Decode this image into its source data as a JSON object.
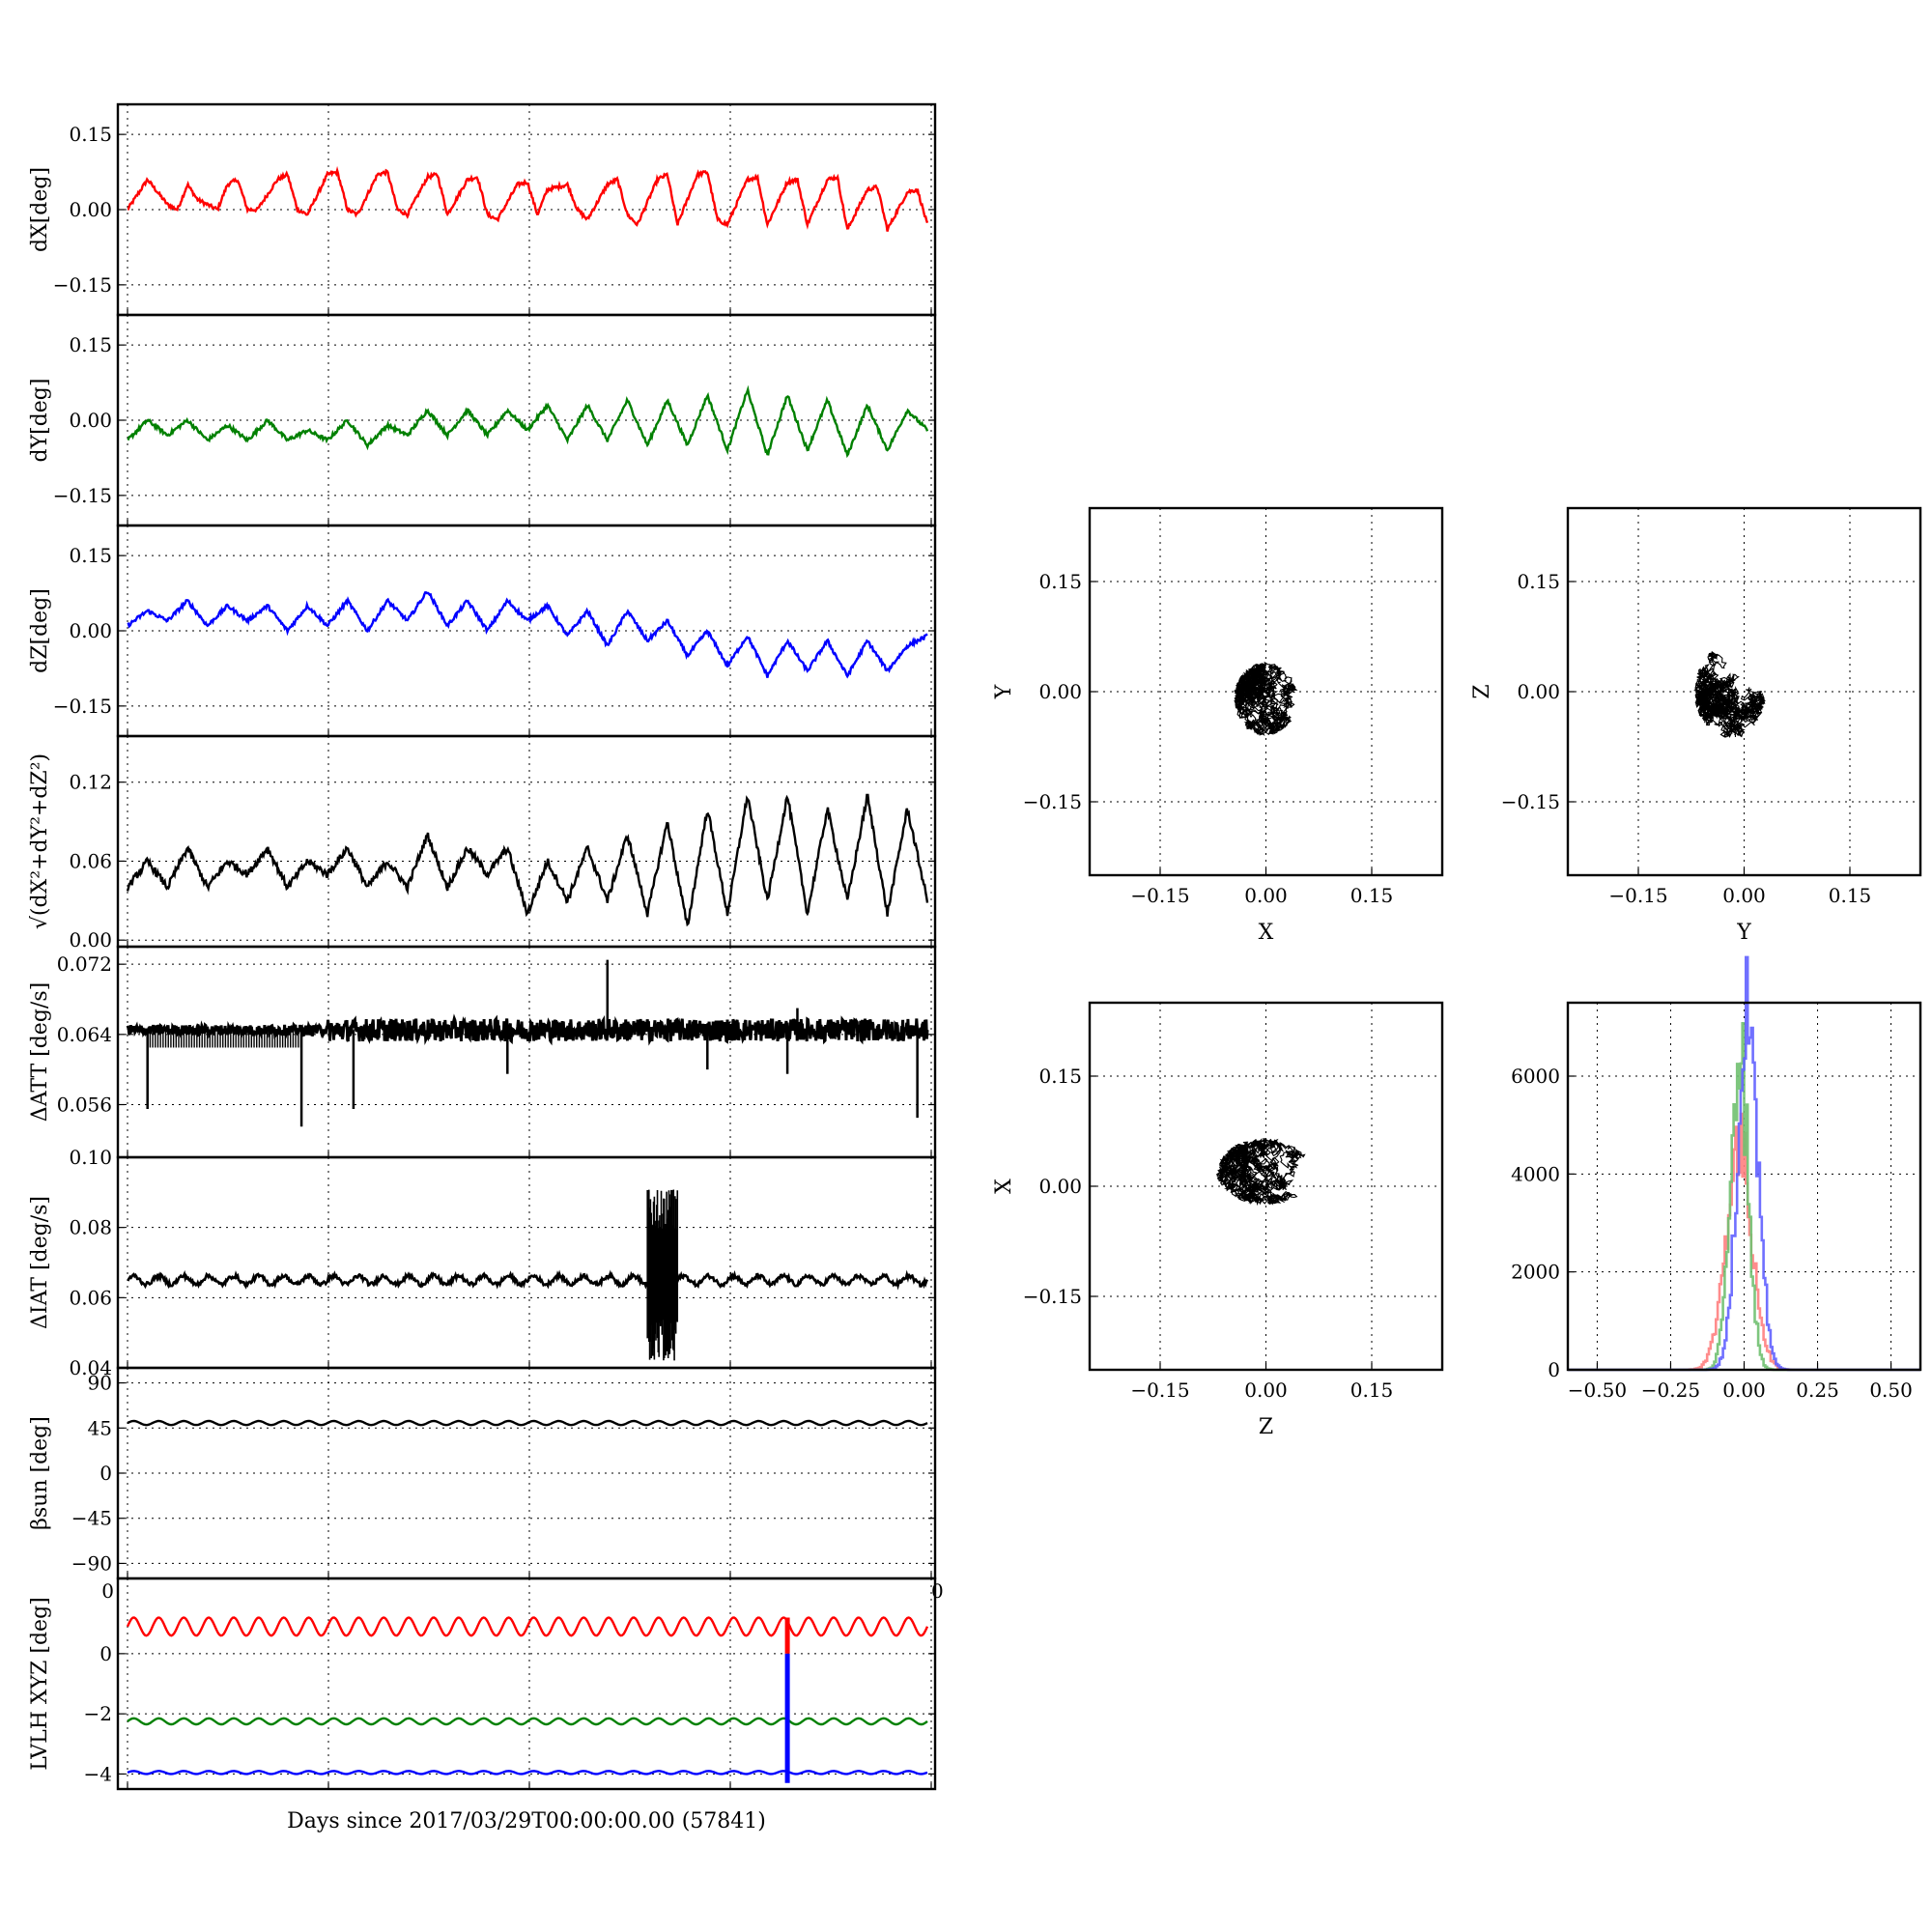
{
  "figure": {
    "xlabel": "Days since 2017/03/29T00:00:00.00 (57841)"
  },
  "colors": {
    "dX": "#ff0000",
    "dY": "#008000",
    "dZ": "#0000ff",
    "black": "#000000",
    "hist_red": "#ff8080",
    "hist_green": "#70c070",
    "hist_blue": "#6060ff"
  },
  "chart_data": [
    {
      "id": "dX",
      "type": "line",
      "ylabel": "dX[deg]",
      "ylim": [
        -0.21,
        0.21
      ],
      "yticks": [
        -0.15,
        0.0,
        0.15
      ],
      "ytick_labels": [
        "−0.15",
        "0.00",
        "0.15"
      ],
      "xlim": [
        0,
        4
      ],
      "grid": true,
      "series": [
        {
          "color": "#ff0000",
          "x": [
            0.0,
            0.05,
            0.1,
            0.2,
            0.25,
            0.3,
            0.35,
            0.45,
            0.5,
            0.55,
            0.6,
            0.65,
            0.75,
            0.8,
            0.85,
            0.9,
            1.0,
            1.05,
            1.1,
            1.15,
            1.25,
            1.3,
            1.35,
            1.4,
            1.5,
            1.55,
            1.6,
            1.7,
            1.75,
            1.8,
            1.85,
            1.95,
            2.0,
            2.05,
            2.1,
            2.2,
            2.25,
            2.3,
            2.4,
            2.45,
            2.5,
            2.55,
            2.65,
            2.7,
            2.75,
            2.85,
            2.9,
            2.95,
            3.0,
            3.1,
            3.15,
            3.2,
            3.3,
            3.35,
            3.4,
            3.5,
            3.55,
            3.6,
            3.7,
            3.75,
            3.8,
            3.9,
            3.95,
            4.0
          ],
          "y": [
            0.0,
            0.03,
            0.06,
            0.01,
            0.0,
            0.05,
            0.02,
            0.0,
            0.05,
            0.06,
            0.0,
            0.0,
            0.06,
            0.07,
            0.0,
            -0.01,
            0.07,
            0.075,
            0.0,
            -0.01,
            0.07,
            0.075,
            0.0,
            -0.01,
            0.065,
            0.07,
            -0.01,
            0.06,
            0.065,
            -0.01,
            -0.02,
            0.05,
            0.055,
            -0.01,
            0.04,
            0.05,
            0.0,
            -0.02,
            0.05,
            0.06,
            -0.01,
            -0.03,
            0.06,
            0.07,
            -0.03,
            0.07,
            0.075,
            -0.02,
            -0.03,
            0.06,
            0.065,
            -0.03,
            0.055,
            0.06,
            -0.03,
            0.06,
            0.065,
            -0.04,
            0.04,
            0.045,
            -0.04,
            0.035,
            0.04,
            -0.03
          ]
        }
      ]
    },
    {
      "id": "dY",
      "type": "line",
      "ylabel": "dY[deg]",
      "ylim": [
        -0.21,
        0.21
      ],
      "yticks": [
        -0.15,
        0.0,
        0.15
      ],
      "ytick_labels": [
        "−0.15",
        "0.00",
        "0.15"
      ],
      "xlim": [
        0,
        4
      ],
      "grid": true,
      "series": [
        {
          "color": "#008000",
          "x": [
            0.0,
            0.1,
            0.2,
            0.3,
            0.4,
            0.5,
            0.6,
            0.7,
            0.8,
            0.9,
            1.0,
            1.1,
            1.2,
            1.3,
            1.4,
            1.5,
            1.6,
            1.7,
            1.8,
            1.9,
            2.0,
            2.1,
            2.2,
            2.3,
            2.4,
            2.5,
            2.6,
            2.7,
            2.8,
            2.9,
            3.0,
            3.1,
            3.2,
            3.3,
            3.4,
            3.5,
            3.6,
            3.7,
            3.8,
            3.9,
            4.0
          ],
          "y": [
            -0.04,
            0.0,
            -0.03,
            0.0,
            -0.04,
            -0.01,
            -0.04,
            0.0,
            -0.04,
            -0.02,
            -0.04,
            0.0,
            -0.05,
            -0.01,
            -0.03,
            0.02,
            -0.03,
            0.02,
            -0.03,
            0.02,
            -0.02,
            0.03,
            -0.04,
            0.03,
            -0.04,
            0.04,
            -0.05,
            0.04,
            -0.05,
            0.05,
            -0.06,
            0.06,
            -0.07,
            0.05,
            -0.06,
            0.04,
            -0.07,
            0.03,
            -0.06,
            0.02,
            -0.02
          ]
        }
      ]
    },
    {
      "id": "dZ",
      "type": "line",
      "ylabel": "dZ[deg]",
      "ylim": [
        -0.21,
        0.21
      ],
      "yticks": [
        -0.15,
        0.0,
        0.15
      ],
      "ytick_labels": [
        "−0.15",
        "0.00",
        "0.15"
      ],
      "xlim": [
        0,
        4
      ],
      "grid": true,
      "series": [
        {
          "color": "#0000ff",
          "x": [
            0.0,
            0.1,
            0.2,
            0.3,
            0.4,
            0.5,
            0.6,
            0.7,
            0.8,
            0.9,
            1.0,
            1.1,
            1.2,
            1.3,
            1.4,
            1.5,
            1.6,
            1.7,
            1.8,
            1.9,
            2.0,
            2.1,
            2.2,
            2.3,
            2.4,
            2.5,
            2.6,
            2.7,
            2.8,
            2.9,
            3.0,
            3.1,
            3.2,
            3.3,
            3.4,
            3.5,
            3.6,
            3.7,
            3.8,
            3.9,
            4.0
          ],
          "y": [
            0.01,
            0.04,
            0.02,
            0.06,
            0.01,
            0.05,
            0.02,
            0.05,
            0.0,
            0.05,
            0.01,
            0.06,
            0.0,
            0.06,
            0.02,
            0.08,
            0.01,
            0.06,
            0.0,
            0.06,
            0.02,
            0.05,
            -0.01,
            0.04,
            -0.03,
            0.04,
            -0.02,
            0.02,
            -0.05,
            0.0,
            -0.07,
            -0.01,
            -0.09,
            -0.02,
            -0.08,
            -0.02,
            -0.09,
            -0.02,
            -0.08,
            -0.03,
            -0.01
          ]
        }
      ]
    },
    {
      "id": "dR",
      "type": "line",
      "ylabel": "√(dX²+dY²+dZ²)",
      "ylim": [
        -0.005,
        0.155
      ],
      "yticks": [
        0.0,
        0.06,
        0.12
      ],
      "ytick_labels": [
        "0.00",
        "0.06",
        "0.12"
      ],
      "xlim": [
        0,
        4
      ],
      "grid": true,
      "series": [
        {
          "color": "#000000",
          "x": [
            0.0,
            0.1,
            0.2,
            0.3,
            0.4,
            0.5,
            0.6,
            0.7,
            0.8,
            0.9,
            1.0,
            1.1,
            1.2,
            1.3,
            1.4,
            1.5,
            1.6,
            1.7,
            1.8,
            1.9,
            2.0,
            2.1,
            2.2,
            2.3,
            2.4,
            2.5,
            2.6,
            2.7,
            2.8,
            2.9,
            3.0,
            3.1,
            3.2,
            3.3,
            3.4,
            3.5,
            3.6,
            3.7,
            3.8,
            3.9,
            4.0
          ],
          "y": [
            0.04,
            0.06,
            0.04,
            0.07,
            0.04,
            0.06,
            0.05,
            0.07,
            0.04,
            0.06,
            0.05,
            0.07,
            0.04,
            0.06,
            0.04,
            0.08,
            0.04,
            0.07,
            0.05,
            0.07,
            0.02,
            0.06,
            0.03,
            0.07,
            0.03,
            0.08,
            0.02,
            0.09,
            0.01,
            0.1,
            0.02,
            0.11,
            0.03,
            0.11,
            0.02,
            0.1,
            0.03,
            0.11,
            0.02,
            0.1,
            0.03
          ]
        }
      ]
    },
    {
      "id": "dATT",
      "type": "line",
      "ylabel": "ΔATT [deg/s]",
      "ylim": [
        0.05,
        0.074
      ],
      "yticks": [
        0.056,
        0.064,
        0.072
      ],
      "ytick_labels": [
        "0.056",
        "0.064",
        "0.072"
      ],
      "xlim": [
        0,
        4
      ],
      "grid": true,
      "baseline": 0.0645,
      "spikes": [
        {
          "x": 0.1,
          "y": 0.0555
        },
        {
          "x": 0.87,
          "y": 0.0535
        },
        {
          "x": 1.13,
          "y": 0.0555
        },
        {
          "x": 1.9,
          "y": 0.0595
        },
        {
          "x": 2.4,
          "y": 0.0725
        },
        {
          "x": 2.9,
          "y": 0.06
        },
        {
          "x": 3.3,
          "y": 0.0595
        },
        {
          "x": 3.35,
          "y": 0.067
        },
        {
          "x": 3.95,
          "y": 0.0545
        }
      ],
      "series": [
        {
          "color": "#000000"
        }
      ]
    },
    {
      "id": "dIAT",
      "type": "line",
      "ylabel": "ΔIAT [deg/s]",
      "ylim": [
        0.04,
        0.1
      ],
      "yticks": [
        0.04,
        0.06,
        0.08,
        0.1
      ],
      "ytick_labels": [
        "0.04",
        "0.06",
        "0.08",
        "0.10"
      ],
      "xlim": [
        0,
        4
      ],
      "grid": true,
      "baseline": 0.065,
      "burst": {
        "x0": 2.6,
        "x1": 2.75,
        "ymin": 0.042,
        "ymax": 0.091
      },
      "series": [
        {
          "color": "#000000"
        }
      ]
    },
    {
      "id": "beta",
      "type": "line",
      "ylabel": "βsun [deg]",
      "ylim": [
        -105,
        105
      ],
      "yticks": [
        -90,
        -45,
        0,
        45,
        90
      ],
      "ytick_labels": [
        "−90",
        "−45",
        "0",
        "45",
        "90"
      ],
      "xlim": [
        0,
        4
      ],
      "grid": true,
      "baseline": 50,
      "series": [
        {
          "color": "#000000"
        }
      ]
    },
    {
      "id": "lvlh",
      "type": "line",
      "ylabel": "LVLH XYZ [deg]",
      "ylim": [
        -4.5,
        2.5
      ],
      "yticks": [
        -4,
        -2,
        0
      ],
      "ytick_labels": [
        "−4",
        "−2",
        "0"
      ],
      "xlim": [
        0,
        4
      ],
      "grid": true,
      "corner_labels": [
        "0",
        "0"
      ],
      "step_x": 3.3,
      "series": [
        {
          "color": "#ff0000",
          "baseline": 0.9,
          "amp": 0.3
        },
        {
          "color": "#008000",
          "baseline": -2.25,
          "amp": 0.1
        },
        {
          "color": "#0000ff",
          "baseline": -3.95,
          "amp": 0.05
        }
      ]
    },
    {
      "id": "scatter_xy",
      "type": "scatter",
      "xlabel": "X",
      "ylabel": "Y",
      "xlim": [
        -0.25,
        0.25
      ],
      "ylim": [
        -0.25,
        0.25
      ],
      "ticks": [
        -0.15,
        0.0,
        0.15
      ],
      "tick_labels": [
        "−0.15",
        "0.00",
        "0.15"
      ],
      "grid": true,
      "cloud": {
        "cx": 0.0,
        "cy": -0.01,
        "rx": 0.045,
        "ry": 0.05
      }
    },
    {
      "id": "scatter_yz",
      "type": "scatter",
      "xlabel": "Y",
      "ylabel": "Z",
      "xlim": [
        -0.25,
        0.25
      ],
      "ylim": [
        -0.25,
        0.25
      ],
      "ticks": [
        -0.15,
        0.0,
        0.15
      ],
      "tick_labels": [
        "−0.15",
        "0.00",
        "0.15"
      ],
      "grid": true,
      "cloud": {
        "cx": -0.02,
        "cy": 0.0,
        "rx": 0.05,
        "ry": 0.065
      }
    },
    {
      "id": "scatter_zx",
      "type": "scatter",
      "xlabel": "Z",
      "ylabel": "X",
      "xlim": [
        -0.25,
        0.25
      ],
      "ylim": [
        -0.25,
        0.25
      ],
      "ticks": [
        -0.15,
        0.0,
        0.15
      ],
      "tick_labels": [
        "−0.15",
        "0.00",
        "0.15"
      ],
      "grid": true,
      "cloud": {
        "cx": 0.0,
        "cy": 0.02,
        "rx": 0.07,
        "ry": 0.045
      }
    },
    {
      "id": "histogram",
      "type": "histogram",
      "xlim": [
        -0.6,
        0.6
      ],
      "ylim": [
        0,
        7500
      ],
      "xticks": [
        -0.5,
        -0.25,
        0.0,
        0.25,
        0.5
      ],
      "xtick_labels": [
        "−0.50",
        "−0.25",
        "0.00",
        "0.25",
        "0.50"
      ],
      "yticks": [
        0,
        2000,
        4000,
        6000
      ],
      "ytick_labels": [
        "0",
        "2000",
        "4000",
        "6000"
      ],
      "grid": true,
      "series": [
        {
          "color": "#ff8080",
          "mu": -0.02,
          "sigma": 0.045,
          "peak": 4500
        },
        {
          "color": "#70c070",
          "mu": -0.02,
          "sigma": 0.03,
          "peak": 6700
        },
        {
          "color": "#6060ff",
          "mu": 0.01,
          "sigma": 0.035,
          "peak": 7100
        }
      ]
    }
  ]
}
